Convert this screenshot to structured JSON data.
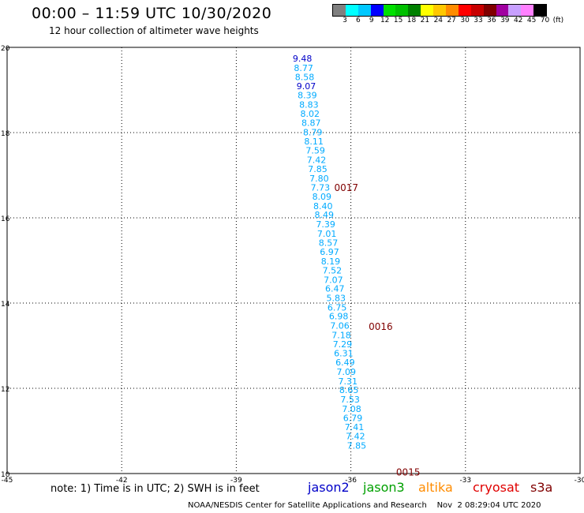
{
  "header": {
    "title": "00:00 – 11:59 UTC 10/30/2020",
    "subtitle": "12 hour collection of altimeter wave heights"
  },
  "colorbar": {
    "colors": [
      "#808080",
      "#00ffff",
      "#00c8ff",
      "#0000ff",
      "#00e000",
      "#00c000",
      "#008000",
      "#ffff00",
      "#ffc800",
      "#ff8c00",
      "#ff0000",
      "#c80000",
      "#800000",
      "#a000a0",
      "#c8a0ff",
      "#ff80ff",
      "#000000"
    ],
    "labels": [
      "3",
      "6",
      "9",
      "12",
      "15",
      "18",
      "21",
      "24",
      "27",
      "30",
      "33",
      "36",
      "39",
      "42",
      "45",
      "70",
      "(ft)"
    ]
  },
  "map": {
    "x_ticks": [
      "-45",
      "-42",
      "-39",
      "-36",
      "-33",
      "-30"
    ],
    "y_ticks": [
      "20",
      "18",
      "16",
      "14",
      "12",
      "10"
    ],
    "lon_range": [
      -45,
      -30
    ],
    "lat_range": [
      10,
      20
    ]
  },
  "observations": [
    {
      "lat": 19.74,
      "lon": -37.27,
      "v": "9.48",
      "color": "#0000c8"
    },
    {
      "lat": 19.52,
      "lon": -37.24,
      "v": "8.77",
      "color": "#00aaff"
    },
    {
      "lat": 19.31,
      "lon": -37.21,
      "v": "8.58",
      "color": "#00aaff"
    },
    {
      "lat": 19.09,
      "lon": -37.17,
      "v": "9.07",
      "color": "#0000c8"
    },
    {
      "lat": 18.88,
      "lon": -37.14,
      "v": "8.39",
      "color": "#00aaff"
    },
    {
      "lat": 18.66,
      "lon": -37.1,
      "v": "8.83",
      "color": "#00aaff"
    },
    {
      "lat": 18.44,
      "lon": -37.07,
      "v": "8.02",
      "color": "#00aaff"
    },
    {
      "lat": 18.23,
      "lon": -37.04,
      "v": "8.87",
      "color": "#00aaff"
    },
    {
      "lat": 18.01,
      "lon": -37.0,
      "v": "8.79",
      "color": "#00aaff"
    },
    {
      "lat": 17.8,
      "lon": -36.97,
      "v": "8.11",
      "color": "#00aaff"
    },
    {
      "lat": 17.58,
      "lon": -36.93,
      "v": "7.59",
      "color": "#00aaff"
    },
    {
      "lat": 17.36,
      "lon": -36.9,
      "v": "7.42",
      "color": "#00aaff"
    },
    {
      "lat": 17.15,
      "lon": -36.87,
      "v": "7.85",
      "color": "#00aaff"
    },
    {
      "lat": 16.93,
      "lon": -36.83,
      "v": "7.80",
      "color": "#00aaff"
    },
    {
      "lat": 16.71,
      "lon": -36.8,
      "v": "7.73",
      "color": "#00aaff"
    },
    {
      "lat": 16.5,
      "lon": -36.76,
      "v": "8.09",
      "color": "#00aaff"
    },
    {
      "lat": 16.28,
      "lon": -36.73,
      "v": "8.40",
      "color": "#00aaff"
    },
    {
      "lat": 16.07,
      "lon": -36.7,
      "v": "8.49",
      "color": "#00aaff"
    },
    {
      "lat": 15.85,
      "lon": -36.66,
      "v": "7.39",
      "color": "#00aaff"
    },
    {
      "lat": 15.63,
      "lon": -36.63,
      "v": "7.01",
      "color": "#00aaff"
    },
    {
      "lat": 15.42,
      "lon": -36.59,
      "v": "8.57",
      "color": "#00aaff"
    },
    {
      "lat": 15.2,
      "lon": -36.56,
      "v": "6.97",
      "color": "#00aaff"
    },
    {
      "lat": 14.98,
      "lon": -36.53,
      "v": "8.19",
      "color": "#00aaff"
    },
    {
      "lat": 14.77,
      "lon": -36.49,
      "v": "7.52",
      "color": "#00aaff"
    },
    {
      "lat": 14.55,
      "lon": -36.46,
      "v": "7.07",
      "color": "#00aaff"
    },
    {
      "lat": 14.34,
      "lon": -36.42,
      "v": "6.47",
      "color": "#00aaff"
    },
    {
      "lat": 14.12,
      "lon": -36.39,
      "v": "5.83",
      "color": "#00aaff"
    },
    {
      "lat": 13.9,
      "lon": -36.36,
      "v": "6.75",
      "color": "#00aaff"
    },
    {
      "lat": 13.69,
      "lon": -36.32,
      "v": "6.98",
      "color": "#00aaff"
    },
    {
      "lat": 13.47,
      "lon": -36.29,
      "v": "7.06",
      "color": "#00aaff"
    },
    {
      "lat": 13.25,
      "lon": -36.25,
      "v": "7.18",
      "color": "#00aaff"
    },
    {
      "lat": 13.04,
      "lon": -36.22,
      "v": "7.29",
      "color": "#00aaff"
    },
    {
      "lat": 12.82,
      "lon": -36.19,
      "v": "6.31",
      "color": "#00aaff"
    },
    {
      "lat": 12.61,
      "lon": -36.15,
      "v": "6.49",
      "color": "#00aaff"
    },
    {
      "lat": 12.39,
      "lon": -36.12,
      "v": "7.09",
      "color": "#00aaff"
    },
    {
      "lat": 12.17,
      "lon": -36.08,
      "v": "7.31",
      "color": "#00aaff"
    },
    {
      "lat": 11.96,
      "lon": -36.05,
      "v": "8.65",
      "color": "#00aaff"
    },
    {
      "lat": 11.74,
      "lon": -36.02,
      "v": "7.53",
      "color": "#00aaff"
    },
    {
      "lat": 11.52,
      "lon": -35.98,
      "v": "7.08",
      "color": "#00aaff"
    },
    {
      "lat": 11.31,
      "lon": -35.95,
      "v": "6.79",
      "color": "#00aaff"
    },
    {
      "lat": 11.09,
      "lon": -35.91,
      "v": "7.41",
      "color": "#00aaff"
    },
    {
      "lat": 10.88,
      "lon": -35.88,
      "v": "7.42",
      "color": "#00aaff"
    },
    {
      "lat": 10.66,
      "lon": -35.85,
      "v": "7.85",
      "color": "#00aaff"
    }
  ],
  "pass_labels": [
    {
      "lat": 16.72,
      "lon": -36.12,
      "text": "0017",
      "color": "#800000"
    },
    {
      "lat": 13.46,
      "lon": -35.22,
      "text": "0016",
      "color": "#800000"
    },
    {
      "lat": 10.05,
      "lon": -34.5,
      "text": "0015",
      "color": "#800000"
    }
  ],
  "footer": {
    "note": "note: 1) Time is in UTC; 2) SWH is in feet",
    "satellites": [
      {
        "name": "jason2",
        "color": "#0000c8"
      },
      {
        "name": "jason3",
        "color": "#00a000"
      },
      {
        "name": "altika",
        "color": "#ff8c00"
      },
      {
        "name": "cryosat",
        "color": "#e00000"
      },
      {
        "name": "s3a",
        "color": "#800000"
      }
    ],
    "credit": "NOAA/NESDIS Center for Satellite Applications and Research    Nov  2 08:29:04 UTC 2020"
  }
}
